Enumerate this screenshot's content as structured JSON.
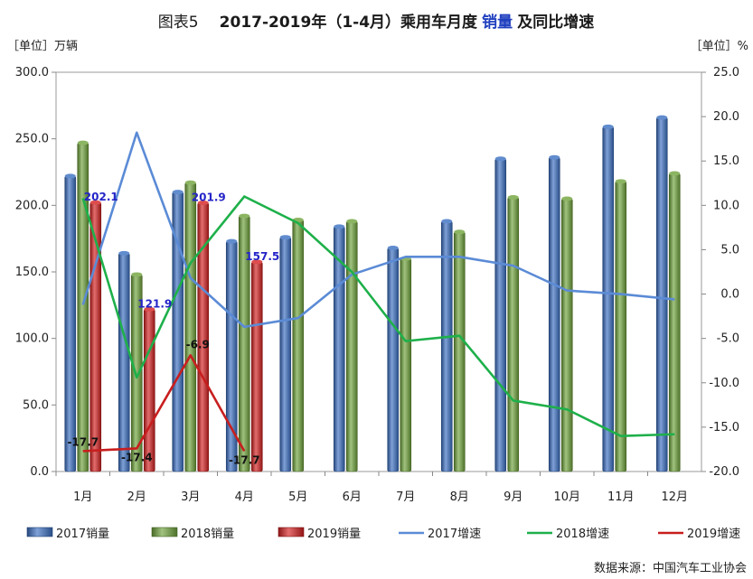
{
  "chart_data": {
    "type": "bar",
    "title": {
      "prefix": "图表5",
      "main": "2017-2019年（1-4月）乘用车月度",
      "highlight": "销量",
      "suffix": "及同比增速"
    },
    "y_left_unit": "［单位］万辆",
    "y_right_unit": "［单位］%",
    "ylim_left": [
      0,
      300
    ],
    "ylim_right": [
      -20,
      25
    ],
    "left_ticks": [
      "0.0",
      "50.0",
      "100.0",
      "150.0",
      "200.0",
      "250.0",
      "300.0"
    ],
    "right_ticks": [
      "-20.0",
      "-15.0",
      "-10.0",
      "-5.0",
      "0.0",
      "5.0",
      "10.0",
      "15.0",
      "20.0",
      "25.0"
    ],
    "categories": [
      "1月",
      "2月",
      "3月",
      "4月",
      "5月",
      "6月",
      "7月",
      "8月",
      "9月",
      "10月",
      "11月",
      "12月"
    ],
    "bar_series": [
      {
        "name": "2017销量",
        "color": "#3a6fc2",
        "values": [
          222,
          164,
          210,
          173,
          176,
          184,
          168,
          188,
          235,
          236,
          259,
          266
        ]
      },
      {
        "name": "2018销量",
        "color": "#6fa33b",
        "values": [
          247,
          148,
          217,
          192,
          189,
          188,
          160,
          180,
          206,
          205,
          218,
          224
        ]
      },
      {
        "name": "2019销量",
        "color": "#d42020",
        "values": [
          202.1,
          121.9,
          201.9,
          157.5,
          null,
          null,
          null,
          null,
          null,
          null,
          null,
          null
        ]
      }
    ],
    "line_series": [
      {
        "name": "2017增速",
        "color": "#5b8bd6",
        "values": [
          -1.2,
          18.2,
          1.8,
          -3.7,
          -2.7,
          2.2,
          4.2,
          4.2,
          3.2,
          0.4,
          0.0,
          -0.6
        ]
      },
      {
        "name": "2018增速",
        "color": "#1eb04a",
        "values": [
          10.8,
          -9.4,
          3.5,
          11.0,
          8.0,
          2.5,
          -5.3,
          -4.7,
          -12.0,
          -13.0,
          -16.0,
          -15.8
        ]
      },
      {
        "name": "2019增速",
        "color": "#c81e1e",
        "values": [
          -17.7,
          -17.4,
          -6.9,
          -17.7,
          null,
          null,
          null,
          null,
          null,
          null,
          null,
          null
        ]
      }
    ],
    "bar_labels": [
      "202.1",
      "121.9",
      "201.9",
      "157.5"
    ],
    "line_labels": [
      "-17.7",
      "-17.4",
      "-6.9",
      "-17.7"
    ],
    "legend_placement": "bottom",
    "grid": false,
    "source": "数据来源：中国汽车工业协会"
  }
}
